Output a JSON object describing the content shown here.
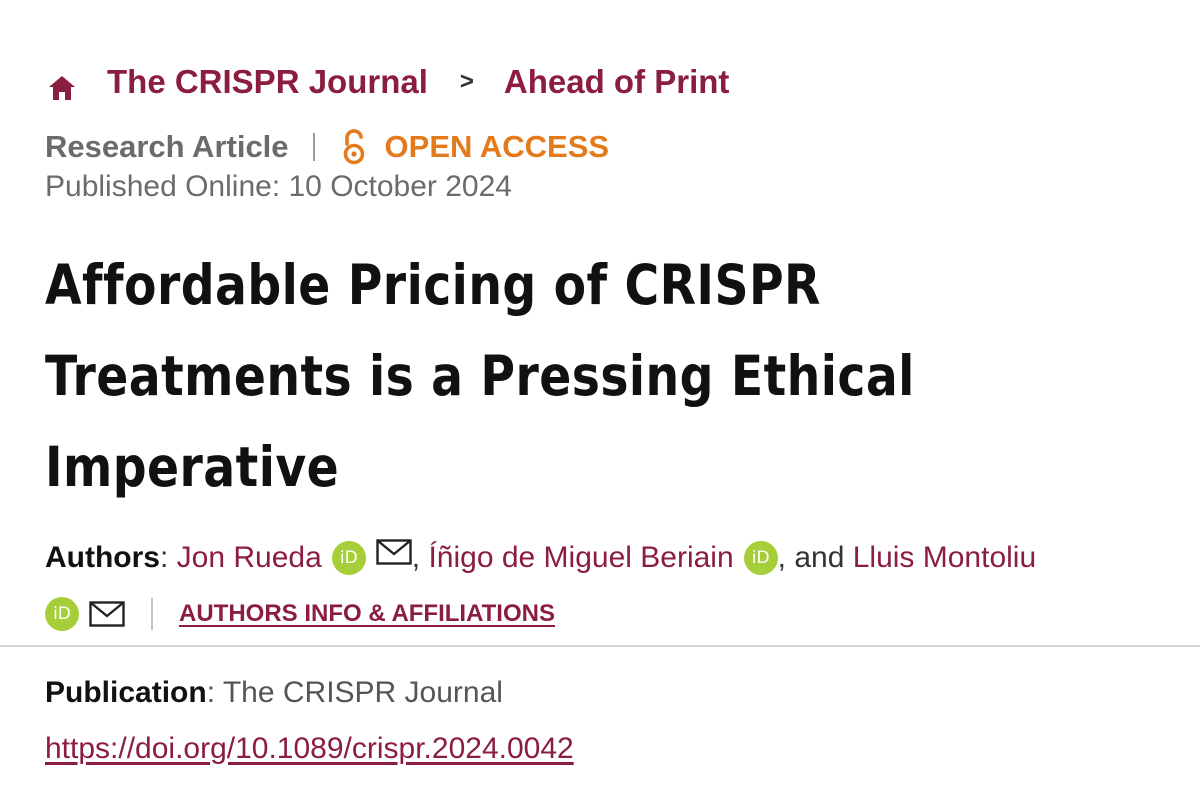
{
  "breadcrumb": {
    "home_icon": "home-icon",
    "journal": "The CRISPR Journal",
    "separator": ">",
    "section": "Ahead of Print"
  },
  "meta": {
    "article_type": "Research Article",
    "divider": "|",
    "open_access_icon": "open-lock-icon",
    "open_access": "OPEN ACCESS",
    "published": "Published Online: 10 October 2024"
  },
  "article": {
    "title_line1": "Affordable Pricing of CRISPR",
    "title_line2": "Treatments is a Pressing Ethical",
    "title_line3": "Imperative"
  },
  "authors": {
    "label": "Authors",
    "colon": ": ",
    "list": [
      {
        "name": "Jon Rueda"
      },
      {
        "name": "Íñigo de Miguel Beriain"
      },
      {
        "name": "Lluis Montoliu"
      }
    ],
    "comma": ",",
    "and": ", and ",
    "orcid_text": "iD",
    "affiliations_link": "AUTHORS INFO & AFFILIATIONS"
  },
  "publication": {
    "label": "Publication",
    "colon": ": ",
    "value": "The CRISPR Journal",
    "doi": "https://doi.org/10.1089/crispr.2024.0042"
  },
  "colors": {
    "brand": "#8b1e3f",
    "open_access": "#e37b1c",
    "orcid": "#a6ce39",
    "muted": "#6b6b6b"
  }
}
